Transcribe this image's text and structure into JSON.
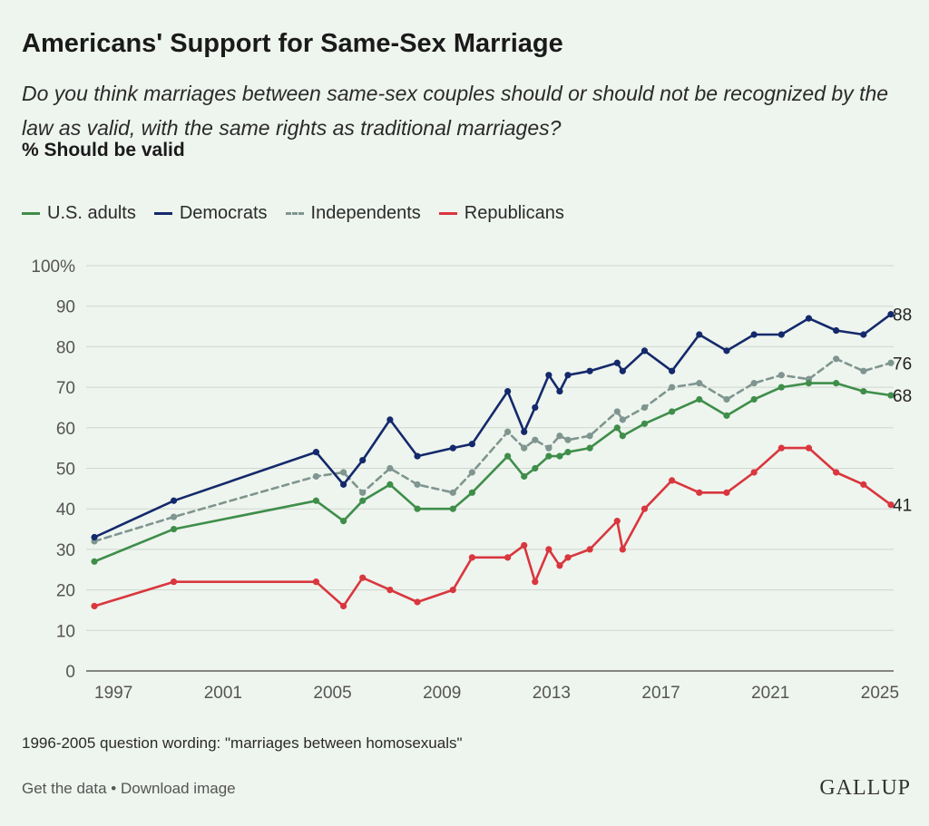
{
  "header": {
    "title": "Americans' Support for Same-Sex Marriage",
    "subtitle": "Do you think marriages between same-sex couples should or should not be recognized by the law as valid, with the same rights as traditional marriages?",
    "measure": "% Should be valid"
  },
  "footnote": "1996-2005 question wording: \"marriages between homosexuals\"",
  "footer": {
    "get_data": "Get the data",
    "separator": " • ",
    "download": "Download image"
  },
  "brand": "GALLUP",
  "colors": {
    "background": "#eef4ee",
    "us_adults": "#3e8e4a",
    "democrats": "#14296b",
    "independents": "#7f9590",
    "republicans": "#d9363e",
    "grid": "#cfd6cf"
  },
  "chart_data": {
    "type": "line",
    "xlim": [
      1996,
      2025.5
    ],
    "ylim": [
      0,
      100
    ],
    "xticks": [
      1997,
      2001,
      2005,
      2009,
      2013,
      2017,
      2021,
      2025
    ],
    "xtick_labels": [
      "1997",
      "2001",
      "2005",
      "2009",
      "2013",
      "2017",
      "2021",
      "2025"
    ],
    "yticks": [
      0,
      10,
      20,
      30,
      40,
      50,
      60,
      70,
      80,
      90,
      100
    ],
    "ytick_labels": [
      "0",
      "10",
      "20",
      "30",
      "40",
      "50",
      "60",
      "70",
      "80",
      "90",
      "100%"
    ],
    "grid": true,
    "legend_position": "top-left",
    "series": [
      {
        "name": "U.S. adults",
        "color_key": "us_adults",
        "dashed": false,
        "end_label": "68",
        "x": [
          1996.3,
          1999.2,
          2004.4,
          2005.4,
          2006.1,
          2007.1,
          2008.1,
          2009.4,
          2010.1,
          2011.4,
          2012.0,
          2012.4,
          2012.9,
          2013.3,
          2013.6,
          2014.4,
          2015.4,
          2015.6,
          2016.4,
          2017.4,
          2018.4,
          2019.4,
          2020.4,
          2021.4,
          2022.4,
          2023.4,
          2024.4,
          2025.4
        ],
        "values": [
          27,
          35,
          42,
          37,
          42,
          46,
          40,
          40,
          44,
          53,
          48,
          50,
          53,
          53,
          54,
          55,
          60,
          58,
          61,
          64,
          67,
          63,
          67,
          70,
          71,
          71,
          69,
          68
        ]
      },
      {
        "name": "Democrats",
        "color_key": "democrats",
        "dashed": false,
        "end_label": "88",
        "x": [
          1996.3,
          1999.2,
          2004.4,
          2005.4,
          2006.1,
          2007.1,
          2008.1,
          2009.4,
          2010.1,
          2011.4,
          2012.0,
          2012.4,
          2012.9,
          2013.3,
          2013.6,
          2014.4,
          2015.4,
          2015.6,
          2016.4,
          2017.4,
          2018.4,
          2019.4,
          2020.4,
          2021.4,
          2022.4,
          2023.4,
          2024.4,
          2025.4
        ],
        "values": [
          33,
          42,
          54,
          46,
          52,
          62,
          53,
          55,
          56,
          69,
          59,
          65,
          73,
          69,
          73,
          74,
          76,
          74,
          79,
          74,
          83,
          79,
          83,
          83,
          87,
          84,
          83,
          88
        ]
      },
      {
        "name": "Independents",
        "color_key": "independents",
        "dashed": true,
        "end_label": "76",
        "x": [
          1996.3,
          1999.2,
          2004.4,
          2005.4,
          2006.1,
          2007.1,
          2008.1,
          2009.4,
          2010.1,
          2011.4,
          2012.0,
          2012.4,
          2012.9,
          2013.3,
          2013.6,
          2014.4,
          2015.4,
          2015.6,
          2016.4,
          2017.4,
          2018.4,
          2019.4,
          2020.4,
          2021.4,
          2022.4,
          2023.4,
          2024.4,
          2025.4
        ],
        "values": [
          32,
          38,
          48,
          49,
          44,
          50,
          46,
          44,
          49,
          59,
          55,
          57,
          55,
          58,
          57,
          58,
          64,
          62,
          65,
          70,
          71,
          67,
          71,
          73,
          72,
          77,
          74,
          76
        ]
      },
      {
        "name": "Republicans",
        "color_key": "republicans",
        "dashed": false,
        "end_label": "41",
        "x": [
          1996.3,
          1999.2,
          2004.4,
          2005.4,
          2006.1,
          2007.1,
          2008.1,
          2009.4,
          2010.1,
          2011.4,
          2012.0,
          2012.4,
          2012.9,
          2013.3,
          2013.6,
          2014.4,
          2015.4,
          2015.6,
          2016.4,
          2017.4,
          2018.4,
          2019.4,
          2020.4,
          2021.4,
          2022.4,
          2023.4,
          2024.4,
          2025.4
        ],
        "values": [
          16,
          22,
          22,
          16,
          23,
          20,
          17,
          20,
          28,
          28,
          31,
          22,
          30,
          26,
          28,
          30,
          37,
          30,
          40,
          47,
          44,
          44,
          49,
          55,
          55,
          49,
          46,
          41
        ]
      }
    ]
  }
}
